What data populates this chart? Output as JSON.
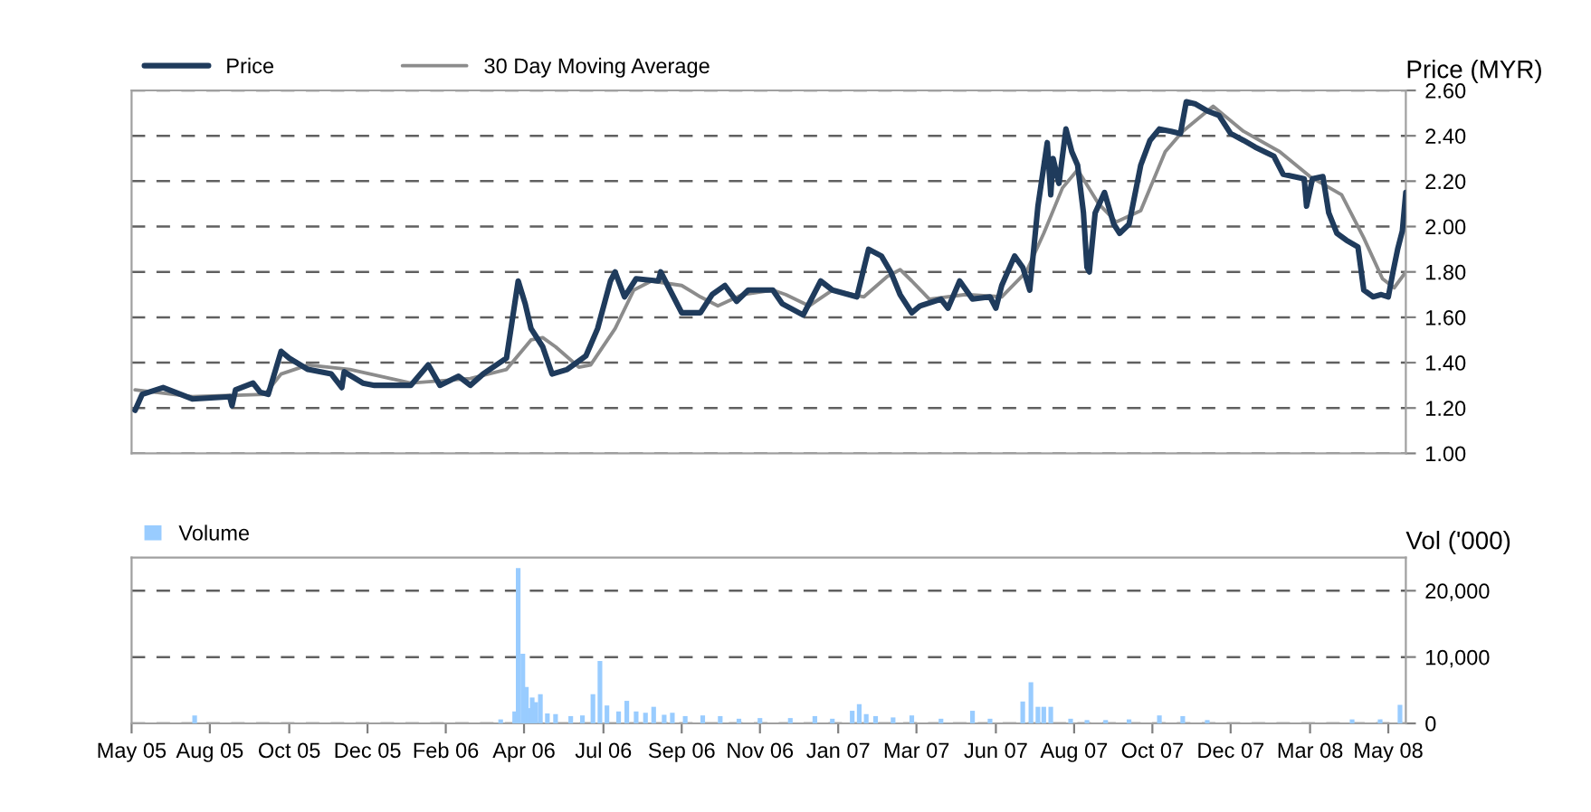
{
  "chart_data": [
    {
      "type": "line",
      "ylabel": "Price (MYR)",
      "xlim": [
        "2005-05-28",
        "2008-05-23"
      ],
      "ylim": [
        1.0,
        2.6
      ],
      "yticks": [
        {
          "value": 1.0,
          "label": "1.00"
        },
        {
          "value": 1.2,
          "label": "1.20"
        },
        {
          "value": 1.4,
          "label": "1.40"
        },
        {
          "value": 1.6,
          "label": "1.60"
        },
        {
          "value": 1.8,
          "label": "1.80"
        },
        {
          "value": 2.0,
          "label": "2.00"
        },
        {
          "value": 2.2,
          "label": "2.20"
        },
        {
          "value": 2.4,
          "label": "2.40"
        },
        {
          "value": 2.6,
          "label": "2.60"
        }
      ],
      "tick_labels": "y",
      "grid": "y",
      "legend": "top left",
      "marker": "none",
      "series": [
        {
          "name": "Price",
          "color": "#1f3b5c",
          "x": [
            "2005-05-31",
            "2005-06-06",
            "2005-06-24",
            "2005-07-04",
            "2005-07-19",
            "2005-08-20",
            "2005-08-22",
            "2005-08-25",
            "2005-09-09",
            "2005-09-15",
            "2005-09-22",
            "2005-10-03",
            "2005-10-10",
            "2005-10-26",
            "2005-11-15",
            "2005-11-24",
            "2005-11-26",
            "2005-12-12",
            "2005-12-22",
            "2006-01-22",
            "2006-02-06",
            "2006-02-16",
            "2006-03-04",
            "2006-03-14",
            "2006-03-25",
            "2006-04-14",
            "2006-04-24",
            "2006-04-30",
            "2006-05-05",
            "2006-05-15",
            "2006-05-23",
            "2006-06-05",
            "2006-06-21",
            "2006-07-01",
            "2006-07-12",
            "2006-07-16",
            "2006-07-24",
            "2006-08-03",
            "2006-08-22",
            "2006-08-24",
            "2006-09-01",
            "2006-09-11",
            "2006-09-27",
            "2006-10-07",
            "2006-10-18",
            "2006-10-28",
            "2006-11-07",
            "2006-11-28",
            "2006-12-06",
            "2006-12-24",
            "2007-01-08",
            "2007-01-18",
            "2007-02-08",
            "2007-02-18",
            "2007-03-01",
            "2007-03-09",
            "2007-03-17",
            "2007-03-27",
            "2007-04-03",
            "2007-04-21",
            "2007-04-27",
            "2007-05-07",
            "2007-05-18",
            "2007-06-02",
            "2007-06-07",
            "2007-06-12",
            "2007-06-23",
            "2007-06-30",
            "2007-07-06",
            "2007-07-13",
            "2007-07-21",
            "2007-07-24",
            "2007-07-26",
            "2007-07-31",
            "2007-08-06",
            "2007-08-11",
            "2007-08-16",
            "2007-08-21",
            "2007-08-24",
            "2007-08-26",
            "2007-08-31",
            "2007-09-08",
            "2007-09-16",
            "2007-09-21",
            "2007-09-29",
            "2007-10-04",
            "2007-10-09",
            "2007-10-17",
            "2007-10-25",
            "2007-11-04",
            "2007-11-12",
            "2007-11-17",
            "2007-11-25",
            "2007-12-05",
            "2007-12-15",
            "2007-12-25",
            "2008-01-05",
            "2008-01-15",
            "2008-01-31",
            "2008-02-08",
            "2008-02-26",
            "2008-02-28",
            "2008-03-04",
            "2008-03-13",
            "2008-03-18",
            "2008-03-25",
            "2008-04-02",
            "2008-04-12",
            "2008-04-17",
            "2008-04-25",
            "2008-05-02",
            "2008-05-08",
            "2008-05-12",
            "2008-05-16",
            "2008-05-20",
            "2008-05-23"
          ],
          "values": [
            1.19,
            1.26,
            1.29,
            1.27,
            1.24,
            1.25,
            1.21,
            1.28,
            1.31,
            1.27,
            1.26,
            1.45,
            1.42,
            1.37,
            1.35,
            1.29,
            1.36,
            1.31,
            1.3,
            1.3,
            1.39,
            1.3,
            1.34,
            1.3,
            1.35,
            1.42,
            1.76,
            1.66,
            1.55,
            1.47,
            1.35,
            1.37,
            1.43,
            1.55,
            1.76,
            1.8,
            1.69,
            1.77,
            1.76,
            1.8,
            1.72,
            1.62,
            1.62,
            1.7,
            1.74,
            1.67,
            1.72,
            1.72,
            1.66,
            1.61,
            1.76,
            1.72,
            1.69,
            1.9,
            1.87,
            1.8,
            1.7,
            1.62,
            1.65,
            1.68,
            1.64,
            1.76,
            1.68,
            1.69,
            1.64,
            1.74,
            1.87,
            1.82,
            1.72,
            2.09,
            2.37,
            2.14,
            2.3,
            2.19,
            2.43,
            2.33,
            2.27,
            2.06,
            1.82,
            1.8,
            2.06,
            2.15,
            2.01,
            1.97,
            2.01,
            2.14,
            2.27,
            2.38,
            2.43,
            2.42,
            2.41,
            2.55,
            2.54,
            2.51,
            2.49,
            2.41,
            2.38,
            2.35,
            2.31,
            2.23,
            2.21,
            2.09,
            2.21,
            2.22,
            2.06,
            1.97,
            1.94,
            1.91,
            1.72,
            1.69,
            1.7,
            1.69,
            1.8,
            1.9,
            1.98,
            2.15
          ]
        },
        {
          "name": "30 Day Moving Average",
          "color": "#8c8c8c",
          "x": [
            "2005-05-31",
            "2005-07-19",
            "2005-09-19",
            "2005-10-03",
            "2005-10-26",
            "2005-12-01",
            "2006-01-22",
            "2006-03-14",
            "2006-04-14",
            "2006-05-05",
            "2006-05-15",
            "2006-05-26",
            "2006-06-15",
            "2006-06-25",
            "2006-07-16",
            "2006-08-01",
            "2006-08-16",
            "2006-09-11",
            "2006-09-27",
            "2006-10-12",
            "2006-11-02",
            "2006-11-28",
            "2006-12-09",
            "2006-12-29",
            "2007-01-18",
            "2007-02-14",
            "2007-03-06",
            "2007-03-17",
            "2007-03-27",
            "2007-04-11",
            "2007-05-12",
            "2007-06-12",
            "2007-07-03",
            "2007-07-18",
            "2007-08-03",
            "2007-08-16",
            "2007-09-03",
            "2007-09-18",
            "2007-10-09",
            "2007-10-30",
            "2007-11-14",
            "2007-12-10",
            "2008-01-05",
            "2008-02-05",
            "2008-03-02",
            "2008-03-29",
            "2008-04-17",
            "2008-05-03",
            "2008-05-13",
            "2008-05-23"
          ],
          "values": [
            1.28,
            1.25,
            1.26,
            1.35,
            1.39,
            1.37,
            1.31,
            1.33,
            1.37,
            1.5,
            1.51,
            1.47,
            1.38,
            1.39,
            1.55,
            1.72,
            1.76,
            1.74,
            1.69,
            1.65,
            1.7,
            1.72,
            1.7,
            1.65,
            1.72,
            1.69,
            1.78,
            1.81,
            1.76,
            1.68,
            1.7,
            1.69,
            1.8,
            1.97,
            2.17,
            2.25,
            2.1,
            2.02,
            2.07,
            2.33,
            2.42,
            2.53,
            2.42,
            2.33,
            2.22,
            2.14,
            1.95,
            1.77,
            1.73,
            1.8
          ]
        }
      ]
    },
    {
      "type": "bar",
      "ylabel": "Vol ('000)",
      "xlim": [
        "2005-05-28",
        "2008-05-23"
      ],
      "ylim": [
        0,
        25000
      ],
      "xticks": [
        {
          "value": "2005-05-28",
          "label": "May 05"
        },
        {
          "value": "2005-08-03",
          "label": "Aug 05"
        },
        {
          "value": "2005-10-10",
          "label": "Oct 05"
        },
        {
          "value": "2005-12-16",
          "label": "Dec 05"
        },
        {
          "value": "2006-02-21",
          "label": "Feb 06"
        },
        {
          "value": "2006-04-29",
          "label": "Apr 06"
        },
        {
          "value": "2006-07-06",
          "label": "Jul 06"
        },
        {
          "value": "2006-09-11",
          "label": "Sep 06"
        },
        {
          "value": "2006-11-17",
          "label": "Nov 06"
        },
        {
          "value": "2007-01-23",
          "label": "Jan 07"
        },
        {
          "value": "2007-03-31",
          "label": "Mar 07"
        },
        {
          "value": "2007-06-07",
          "label": "Jun 07"
        },
        {
          "value": "2007-08-13",
          "label": "Aug 07"
        },
        {
          "value": "2007-10-19",
          "label": "Oct 07"
        },
        {
          "value": "2007-12-25",
          "label": "Dec 07"
        },
        {
          "value": "2008-03-02",
          "label": "Mar 08"
        },
        {
          "value": "2008-05-08",
          "label": "May 08"
        }
      ],
      "yticks": [
        0,
        {
          "value": 10000,
          "label": "10,000"
        },
        {
          "value": 20000,
          "label": "20,000"
        }
      ],
      "grid": "y",
      "legend": "top left",
      "series": [
        {
          "name": "Volume",
          "color": "#99ccff",
          "x": [
            "2005-07-21",
            "2006-04-09",
            "2006-04-21",
            "2006-04-24",
            "2006-04-28",
            "2006-05-01",
            "2006-05-03",
            "2006-05-06",
            "2006-05-09",
            "2006-05-13",
            "2006-05-19",
            "2006-05-26",
            "2006-06-08",
            "2006-06-18",
            "2006-06-27",
            "2006-07-03",
            "2006-07-09",
            "2006-07-19",
            "2006-07-26",
            "2006-08-03",
            "2006-08-11",
            "2006-08-18",
            "2006-08-27",
            "2006-09-03",
            "2006-09-14",
            "2006-09-29",
            "2006-10-14",
            "2006-10-30",
            "2006-11-17",
            "2006-12-13",
            "2007-01-03",
            "2007-01-18",
            "2007-02-04",
            "2007-02-10",
            "2007-02-16",
            "2007-02-24",
            "2007-03-11",
            "2007-03-27",
            "2007-04-21",
            "2007-05-18",
            "2007-06-02",
            "2007-06-30",
            "2007-07-07",
            "2007-07-13",
            "2007-07-18",
            "2007-07-24",
            "2007-08-10",
            "2007-08-24",
            "2007-09-09",
            "2007-09-29",
            "2007-10-25",
            "2007-11-14",
            "2007-12-05",
            "2008-04-07",
            "2008-05-01",
            "2008-05-18"
          ],
          "values": [
            1200,
            600,
            1800,
            23400,
            10500,
            5500,
            2300,
            3900,
            3200,
            4400,
            1500,
            1400,
            1100,
            1200,
            4400,
            9400,
            2700,
            1800,
            3400,
            1800,
            1600,
            2500,
            1300,
            1600,
            1100,
            1200,
            1100,
            700,
            800,
            800,
            1100,
            700,
            1900,
            2900,
            1400,
            1100,
            900,
            1200,
            700,
            1900,
            700,
            3300,
            6200,
            2500,
            2500,
            2500,
            700,
            500,
            500,
            600,
            1200,
            1100,
            500,
            600,
            600,
            2800
          ]
        }
      ]
    }
  ]
}
